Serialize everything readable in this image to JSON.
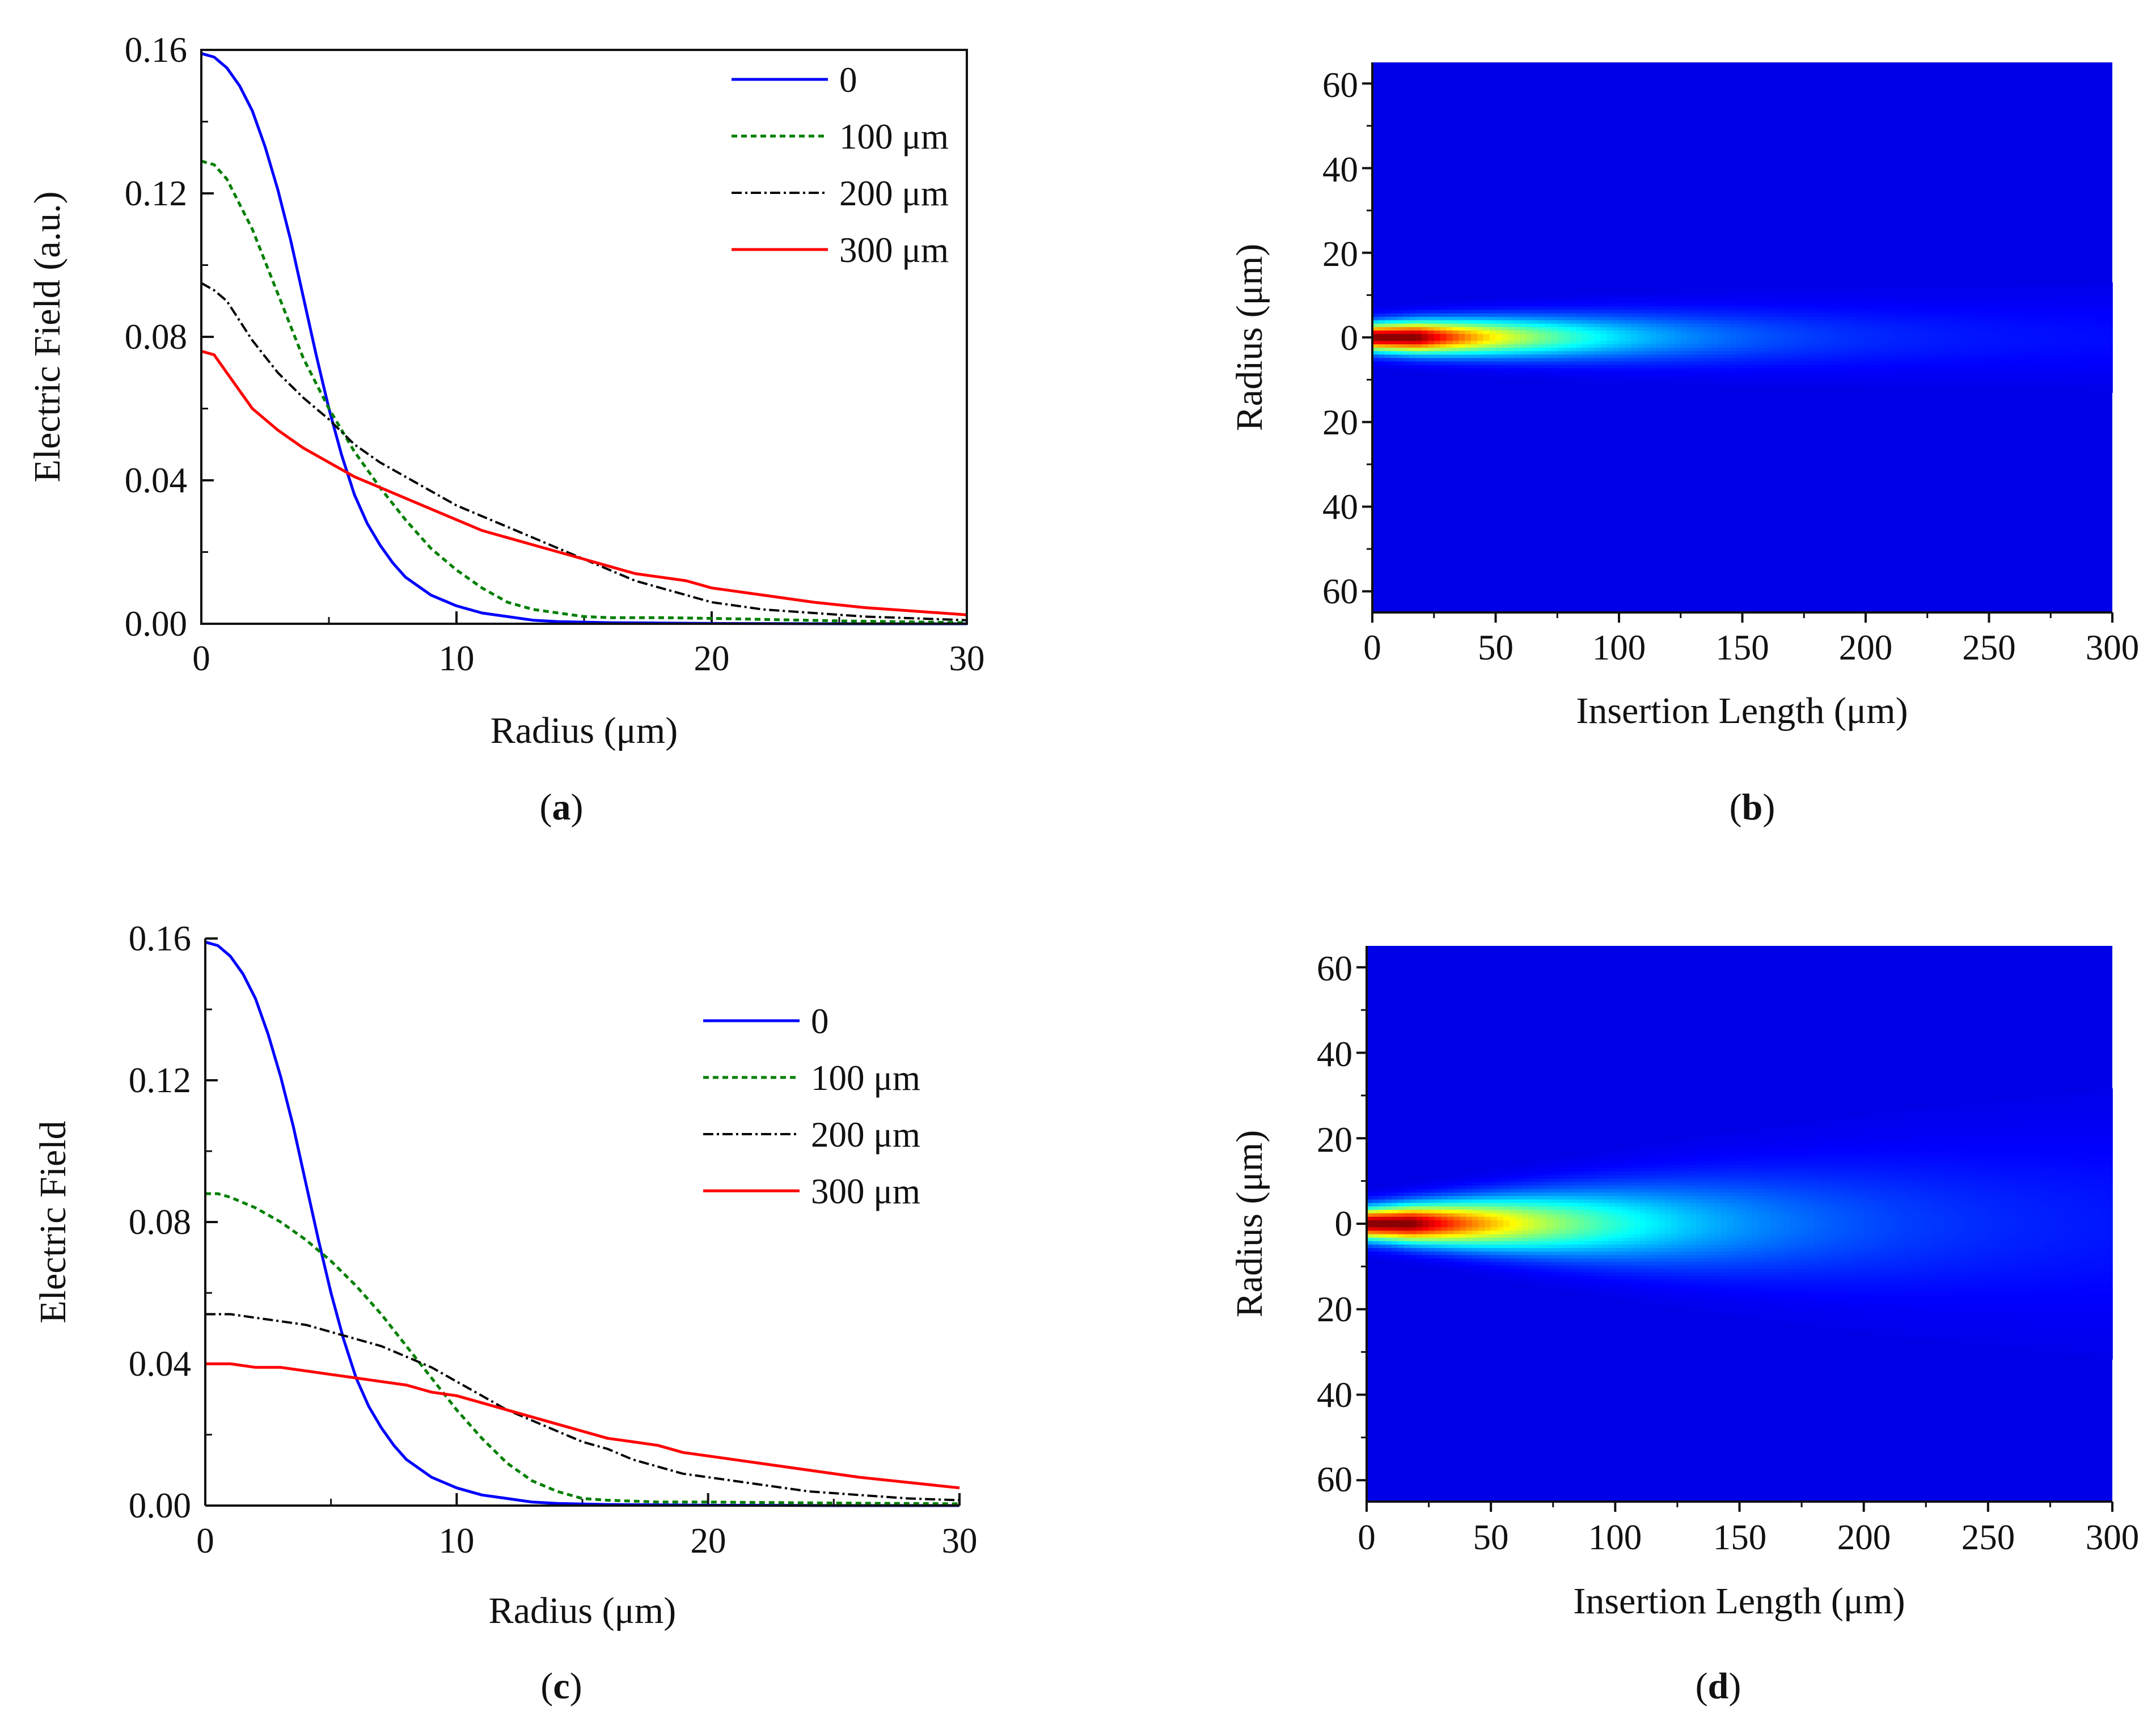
{
  "chart_data": [
    {
      "panel": "(a)",
      "panel_letter": "a",
      "type": "line",
      "xlabel": "Radius (μm)",
      "ylabel": "Electric Field (a.u.)",
      "xlim": [
        0,
        30
      ],
      "ylim": [
        0,
        0.16
      ],
      "xticks": [
        "0",
        "10",
        "20",
        "30"
      ],
      "yticks": [
        "0.00",
        "0.04",
        "0.08",
        "0.12",
        "0.16"
      ],
      "legend_position": "top-right",
      "series": [
        {
          "name": "0",
          "color": "#0000ff",
          "dash": "solid",
          "x": [
            0,
            0.5,
            1,
            1.5,
            2,
            2.5,
            3,
            3.5,
            4,
            4.5,
            5,
            5.5,
            6,
            6.5,
            7,
            7.5,
            8,
            9,
            10,
            11,
            12,
            13,
            14,
            16,
            18,
            20,
            25,
            30
          ],
          "y": [
            0.159,
            0.158,
            0.155,
            0.15,
            0.143,
            0.133,
            0.121,
            0.107,
            0.091,
            0.075,
            0.06,
            0.047,
            0.036,
            0.028,
            0.022,
            0.017,
            0.013,
            0.008,
            0.005,
            0.003,
            0.002,
            0.001,
            0.0006,
            0.0003,
            0.0002,
            0.0001,
            0.0,
            0.0
          ]
        },
        {
          "name": "100 μm",
          "color": "#007f00",
          "dash": "dotted",
          "x": [
            0,
            0.5,
            1,
            2,
            3,
            4,
            5,
            6,
            7,
            8,
            9,
            10,
            11,
            12,
            13,
            14,
            15,
            16,
            18,
            20,
            25,
            30
          ],
          "y": [
            0.129,
            0.128,
            0.124,
            0.11,
            0.092,
            0.074,
            0.06,
            0.048,
            0.038,
            0.029,
            0.021,
            0.015,
            0.01,
            0.006,
            0.004,
            0.003,
            0.002,
            0.0017,
            0.0017,
            0.0015,
            0.0008,
            0.0003
          ]
        },
        {
          "name": "200 μm",
          "color": "#000000",
          "dash": "dashdot",
          "x": [
            0,
            0.5,
            1,
            2,
            3,
            4,
            5,
            6,
            7,
            8,
            9,
            10,
            11,
            12,
            13,
            14,
            15,
            16,
            17,
            18,
            19,
            20,
            22,
            24,
            26,
            28,
            30
          ],
          "y": [
            0.095,
            0.093,
            0.09,
            0.079,
            0.07,
            0.063,
            0.057,
            0.05,
            0.045,
            0.041,
            0.037,
            0.033,
            0.03,
            0.027,
            0.024,
            0.021,
            0.018,
            0.015,
            0.012,
            0.01,
            0.008,
            0.006,
            0.004,
            0.003,
            0.002,
            0.0015,
            0.001
          ]
        },
        {
          "name": "300 μm",
          "color": "#ff0000",
          "dash": "solid",
          "x": [
            0,
            0.5,
            1,
            1.5,
            2,
            3,
            4,
            5,
            6,
            7,
            8,
            9,
            10,
            11,
            12,
            13,
            14,
            15,
            16,
            17,
            18,
            19,
            20,
            22,
            24,
            26,
            28,
            30
          ],
          "y": [
            0.076,
            0.075,
            0.07,
            0.065,
            0.06,
            0.054,
            0.049,
            0.045,
            0.041,
            0.038,
            0.035,
            0.032,
            0.029,
            0.026,
            0.024,
            0.022,
            0.02,
            0.018,
            0.016,
            0.014,
            0.013,
            0.012,
            0.01,
            0.008,
            0.006,
            0.0045,
            0.0035,
            0.0025
          ]
        }
      ]
    },
    {
      "panel": "(b)",
      "panel_letter": "b",
      "type": "heatmap",
      "xlabel": "Insertion Length (μm)",
      "ylabel": "Radius (μm)",
      "xlim": [
        0,
        300
      ],
      "ylim": [
        -65,
        65
      ],
      "xticks": [
        "0",
        "50",
        "100",
        "150",
        "200",
        "250",
        "300"
      ],
      "yticks": [
        "60",
        "40",
        "20",
        "0",
        "20",
        "40",
        "60"
      ],
      "colormap": "jet",
      "beam": {
        "waist_start_um": 2.2,
        "waist_end_um": 6.5,
        "width_growth_exponent": 0.9,
        "peak_position_um": 18,
        "peak_falloff_um": 20,
        "decay_rate_per_um": 1.9
      }
    },
    {
      "panel": "(c)",
      "panel_letter": "c",
      "type": "line",
      "xlabel": "Radius (μm)",
      "ylabel": "Electric Field",
      "xlim": [
        0,
        30
      ],
      "ylim": [
        0,
        0.16
      ],
      "xticks": [
        "0",
        "10",
        "20",
        "30"
      ],
      "yticks": [
        "0.00",
        "0.04",
        "0.08",
        "0.12",
        "0.16"
      ],
      "legend_position": "top-right",
      "series": [
        {
          "name": "0",
          "color": "#0000ff",
          "dash": "solid",
          "x": [
            0,
            0.5,
            1,
            1.5,
            2,
            2.5,
            3,
            3.5,
            4,
            4.5,
            5,
            5.5,
            6,
            6.5,
            7,
            7.5,
            8,
            9,
            10,
            11,
            12,
            13,
            14,
            16,
            18,
            20,
            25,
            30
          ],
          "y": [
            0.159,
            0.158,
            0.155,
            0.15,
            0.143,
            0.133,
            0.121,
            0.107,
            0.091,
            0.075,
            0.06,
            0.047,
            0.036,
            0.028,
            0.022,
            0.017,
            0.013,
            0.008,
            0.005,
            0.003,
            0.002,
            0.001,
            0.0006,
            0.0003,
            0.0002,
            0.0001,
            0.0,
            0.0
          ]
        },
        {
          "name": "100 μm",
          "color": "#007f00",
          "dash": "dotted",
          "x": [
            0,
            0.5,
            1,
            2,
            3,
            4,
            5,
            6,
            7,
            8,
            9,
            10,
            11,
            12,
            13,
            14,
            15,
            16,
            18,
            20,
            25,
            30
          ],
          "y": [
            0.088,
            0.088,
            0.087,
            0.084,
            0.08,
            0.075,
            0.069,
            0.062,
            0.054,
            0.045,
            0.036,
            0.027,
            0.019,
            0.012,
            0.007,
            0.004,
            0.002,
            0.0015,
            0.001,
            0.001,
            0.0007,
            0.0005
          ]
        },
        {
          "name": "200 μm",
          "color": "#000000",
          "dash": "dashdot",
          "x": [
            0,
            0.5,
            1,
            2,
            3,
            4,
            5,
            6,
            7,
            8,
            9,
            10,
            11,
            12,
            13,
            14,
            15,
            16,
            17,
            18,
            19,
            20,
            22,
            24,
            26,
            28,
            30
          ],
          "y": [
            0.054,
            0.054,
            0.054,
            0.053,
            0.052,
            0.051,
            0.049,
            0.047,
            0.045,
            0.042,
            0.039,
            0.035,
            0.031,
            0.027,
            0.024,
            0.021,
            0.018,
            0.016,
            0.013,
            0.011,
            0.009,
            0.008,
            0.006,
            0.004,
            0.003,
            0.002,
            0.0015
          ]
        },
        {
          "name": "300 μm",
          "color": "#ff0000",
          "dash": "solid",
          "x": [
            0,
            1,
            2,
            3,
            4,
            5,
            6,
            7,
            8,
            9,
            10,
            11,
            12,
            13,
            14,
            15,
            16,
            17,
            18,
            19,
            20,
            22,
            24,
            26,
            28,
            30
          ],
          "y": [
            0.04,
            0.04,
            0.039,
            0.039,
            0.038,
            0.037,
            0.036,
            0.035,
            0.034,
            0.032,
            0.031,
            0.029,
            0.027,
            0.025,
            0.023,
            0.021,
            0.019,
            0.018,
            0.017,
            0.015,
            0.014,
            0.012,
            0.01,
            0.008,
            0.0065,
            0.005
          ]
        }
      ]
    },
    {
      "panel": "(d)",
      "panel_letter": "d",
      "type": "heatmap",
      "xlabel": "Insertion Length (μm)",
      "ylabel": "Radius (μm)",
      "xlim": [
        0,
        300
      ],
      "ylim": [
        -65,
        65
      ],
      "xticks": [
        "0",
        "50",
        "100",
        "150",
        "200",
        "250",
        "300"
      ],
      "yticks": [
        "60",
        "40",
        "20",
        "0",
        "20",
        "40",
        "60"
      ],
      "colormap": "jet",
      "beam": {
        "waist_start_um": 2.5,
        "waist_end_um": 15,
        "width_growth_exponent": 1.15,
        "peak_position_um": 18,
        "peak_falloff_um": 22,
        "decay_rate_per_um": 1.5
      }
    }
  ]
}
